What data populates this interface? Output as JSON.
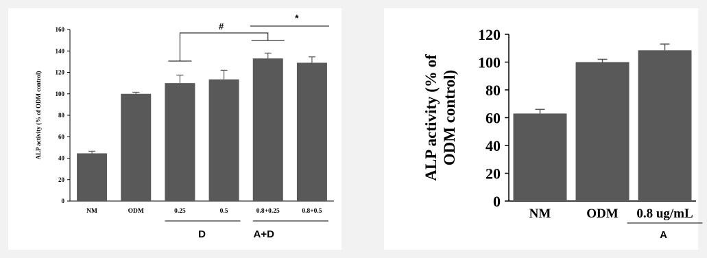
{
  "chart_data": [
    {
      "type": "bar",
      "ylabel": "ALP activity (% of ODM control)",
      "ylim": [
        0,
        160
      ],
      "yticks": [
        0,
        20,
        40,
        60,
        80,
        100,
        120,
        140,
        160
      ],
      "categories": [
        "NM",
        "ODM",
        "0.25",
        "0.5",
        "0.8+0.25",
        "0.8+0.5"
      ],
      "values": [
        44.5,
        100,
        110,
        113.5,
        133,
        129
      ],
      "errors": [
        2,
        1.5,
        7.5,
        8.5,
        5,
        5.5
      ],
      "group_labels": [
        "D",
        "A+D"
      ],
      "significance": [
        "#",
        "*"
      ],
      "bar_color": "#595959"
    },
    {
      "type": "bar",
      "ylabel_lines": [
        "ALP activity (% of",
        "ODM control)"
      ],
      "ylim": [
        0,
        120
      ],
      "yticks": [
        0,
        20,
        40,
        60,
        80,
        100,
        120
      ],
      "categories": [
        "NM",
        "ODM",
        "0.8 ug/mL"
      ],
      "values": [
        63,
        100,
        108.5
      ],
      "errors": [
        3,
        2,
        4.5
      ],
      "group_labels": [
        "A"
      ],
      "bar_color": "#595959"
    }
  ]
}
